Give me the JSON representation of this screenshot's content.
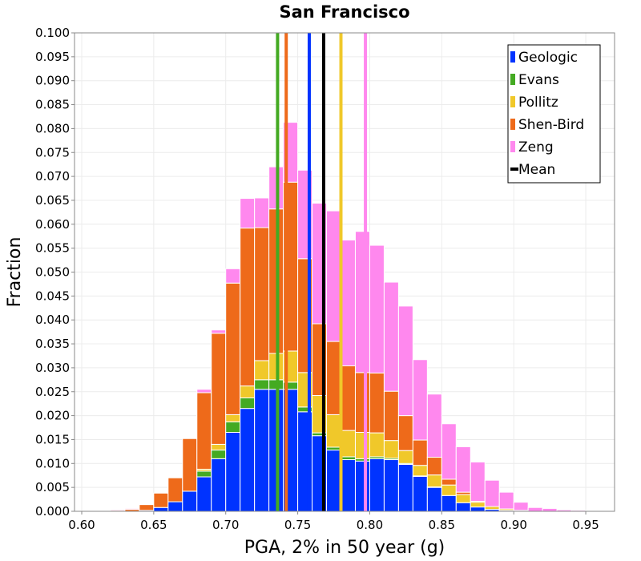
{
  "chart_data": {
    "type": "bar",
    "title": "San Francisco",
    "xlabel": "PGA, 2% in 50 year (g)",
    "ylabel": "Fraction",
    "xlim": [
      0.595,
      0.97
    ],
    "ylim": [
      0,
      0.1
    ],
    "bin_width": 0.01,
    "stacked": true,
    "grid": true,
    "legend_position": "top-right",
    "x_ticks": [
      "0.60",
      "0.65",
      "0.70",
      "0.75",
      "0.80",
      "0.85",
      "0.90",
      "0.95"
    ],
    "x_tick_values": [
      0.6,
      0.65,
      0.7,
      0.75,
      0.8,
      0.85,
      0.9,
      0.95
    ],
    "y_ticks": [
      "0.000",
      "0.005",
      "0.010",
      "0.015",
      "0.020",
      "0.025",
      "0.030",
      "0.035",
      "0.040",
      "0.045",
      "0.050",
      "0.055",
      "0.060",
      "0.065",
      "0.070",
      "0.075",
      "0.080",
      "0.085",
      "0.090",
      "0.095",
      "0.100"
    ],
    "y_tick_values": [
      0,
      0.005,
      0.01,
      0.015,
      0.02,
      0.025,
      0.03,
      0.035,
      0.04,
      0.045,
      0.05,
      0.055,
      0.06,
      0.065,
      0.07,
      0.075,
      0.08,
      0.085,
      0.09,
      0.095,
      0.1
    ],
    "bin_centers": [
      0.605,
      0.615,
      0.625,
      0.635,
      0.645,
      0.655,
      0.665,
      0.675,
      0.685,
      0.695,
      0.705,
      0.715,
      0.725,
      0.735,
      0.745,
      0.755,
      0.765,
      0.775,
      0.785,
      0.795,
      0.805,
      0.815,
      0.825,
      0.835,
      0.845,
      0.855,
      0.865,
      0.875,
      0.885,
      0.895,
      0.905,
      0.915,
      0.925,
      0.935,
      0.945,
      0.955
    ],
    "series": [
      {
        "name": "Geologic",
        "color": "#0033ff",
        "values": [
          0.0,
          0.0,
          0.0,
          0.0,
          0.0002,
          0.0008,
          0.002,
          0.0042,
          0.0072,
          0.011,
          0.0165,
          0.0215,
          0.0255,
          0.0255,
          0.0255,
          0.0208,
          0.0158,
          0.0128,
          0.0108,
          0.0105,
          0.011,
          0.0108,
          0.0098,
          0.0073,
          0.005,
          0.0033,
          0.0018,
          0.0009,
          0.0004,
          0.0002,
          0.0001,
          0.0,
          0.0,
          0.0,
          0.0,
          0.0
        ]
      },
      {
        "name": "Evans",
        "color": "#44aa22",
        "values": [
          0.0,
          0.0,
          0.0,
          0.0,
          0.0,
          0.0,
          0.0,
          0.0,
          0.0012,
          0.0018,
          0.0022,
          0.0022,
          0.002,
          0.002,
          0.0015,
          0.001,
          0.0006,
          0.0006,
          0.0006,
          0.0005,
          0.0004,
          0.0003,
          0.0002,
          0.0001,
          0.0001,
          0.0,
          0.0,
          0.0,
          0.0,
          0.0,
          0.0,
          0.0,
          0.0,
          0.0,
          0.0,
          0.0
        ]
      },
      {
        "name": "Pollitz",
        "color": "#f0c82a",
        "values": [
          0.0,
          0.0,
          0.0,
          0.0,
          0.0,
          0.0,
          0.0,
          0.0,
          0.0004,
          0.0012,
          0.0015,
          0.0025,
          0.004,
          0.0055,
          0.0065,
          0.0072,
          0.0078,
          0.0068,
          0.0055,
          0.0055,
          0.005,
          0.0037,
          0.0027,
          0.0022,
          0.0025,
          0.0022,
          0.0017,
          0.001,
          0.0006,
          0.0003,
          0.0001,
          0.0,
          0.0,
          0.0,
          0.0,
          0.0
        ]
      },
      {
        "name": "Shen-Bird",
        "color": "#ee6a1a",
        "values": [
          0.0,
          0.0,
          0.0002,
          0.0004,
          0.0012,
          0.003,
          0.005,
          0.011,
          0.016,
          0.0232,
          0.0275,
          0.033,
          0.0278,
          0.0302,
          0.0353,
          0.0238,
          0.015,
          0.0153,
          0.0135,
          0.0125,
          0.0125,
          0.0103,
          0.0073,
          0.0053,
          0.0037,
          0.0012,
          0.0005,
          0.0002,
          0.0,
          0.0,
          0.0,
          0.0,
          0.0,
          0.0,
          0.0,
          0.0
        ]
      },
      {
        "name": "Zeng",
        "color": "#ff88ee",
        "values": [
          0.0,
          0.0001,
          0.0002,
          0.0002,
          0.0,
          0.0,
          0.0,
          0.0,
          0.0007,
          0.0007,
          0.003,
          0.0062,
          0.0062,
          0.0088,
          0.0125,
          0.0185,
          0.0252,
          0.0273,
          0.0263,
          0.0295,
          0.0267,
          0.0228,
          0.0229,
          0.0168,
          0.0132,
          0.0116,
          0.0095,
          0.0082,
          0.0055,
          0.0035,
          0.0017,
          0.0008,
          0.0006,
          0.0003,
          0.0002,
          0.0001
        ]
      }
    ],
    "mean_lines": [
      {
        "name": "Geologic",
        "x": 0.758,
        "color": "#0033ff"
      },
      {
        "name": "Evans",
        "x": 0.736,
        "color": "#44aa22"
      },
      {
        "name": "Pollitz",
        "x": 0.78,
        "color": "#f0c82a"
      },
      {
        "name": "Shen-Bird",
        "x": 0.742,
        "color": "#ee6a1a"
      },
      {
        "name": "Zeng",
        "x": 0.797,
        "color": "#ff88ee"
      },
      {
        "name": "Mean",
        "x": 0.768,
        "color": "#000000"
      }
    ],
    "legend": [
      {
        "label": "Geologic",
        "color": "#0033ff",
        "kind": "box"
      },
      {
        "label": "Evans",
        "color": "#44aa22",
        "kind": "box"
      },
      {
        "label": "Pollitz",
        "color": "#f0c82a",
        "kind": "box"
      },
      {
        "label": "Shen-Bird",
        "color": "#ee6a1a",
        "kind": "box"
      },
      {
        "label": "Zeng",
        "color": "#ff88ee",
        "kind": "box"
      },
      {
        "label": "Mean",
        "color": "#000000",
        "kind": "line"
      }
    ]
  }
}
